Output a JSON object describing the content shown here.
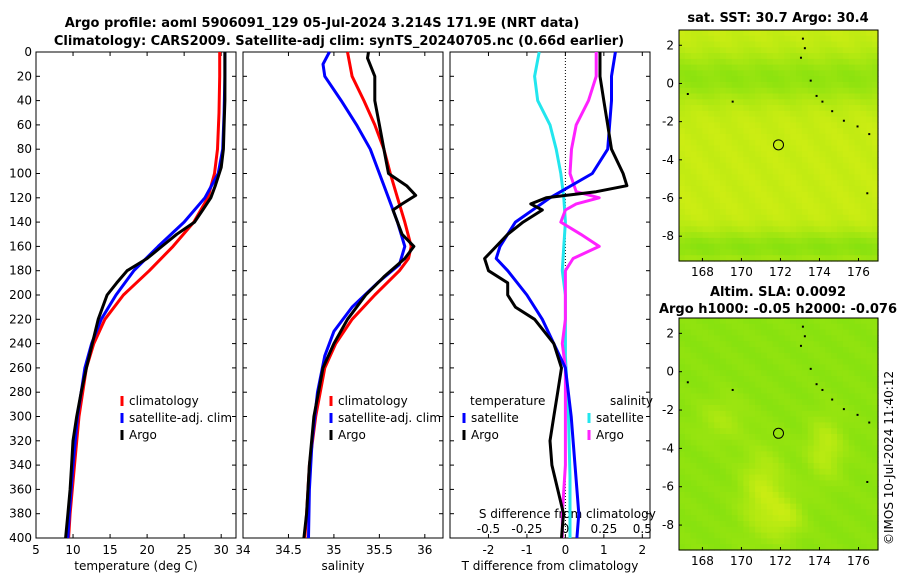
{
  "header": {
    "title_line1": "Argo profile: aoml 5906091_129 05-Jul-2024 3.214S 171.9E (NRT data)",
    "title_line2": "Climatology: CARS2009. Satellite-adj clim: synTS_20240705.nc (0.66d earlier)"
  },
  "watermark": "©IMOS 10-Jul-2024 11:40:12",
  "colors": {
    "climatology": "#ff0000",
    "satellite": "#0000ff",
    "argo": "#000000",
    "sal_satellite": "#22e6ee",
    "sal_argo": "#ff22ff",
    "map_bg": "#7ee00e",
    "map_warm": "#dff014"
  },
  "chart_data": [
    {
      "type": "line",
      "name": "temperature-profile",
      "xlabel": "temperature (deg C)",
      "xlim": [
        5,
        32
      ],
      "xticks": [
        5,
        10,
        15,
        20,
        25,
        30
      ],
      "xticklabels": [
        "5",
        "10",
        "15",
        "20",
        "25",
        "30"
      ],
      "ylim": [
        0,
        400
      ],
      "yticks": [
        0,
        20,
        40,
        60,
        80,
        100,
        120,
        140,
        160,
        180,
        200,
        220,
        240,
        260,
        280,
        300,
        320,
        340,
        360,
        380,
        400
      ],
      "legend": [
        "climatology",
        "satellite-adj. clim",
        "Argo"
      ],
      "series": [
        {
          "name": "climatology",
          "color": "#ff0000",
          "depth": [
            0,
            20,
            50,
            80,
            100,
            120,
            140,
            160,
            180,
            200,
            220,
            240,
            260,
            300,
            340,
            380,
            400
          ],
          "values": [
            29.8,
            29.8,
            29.7,
            29.5,
            29.1,
            28.2,
            26.3,
            23.5,
            20.3,
            16.8,
            14.3,
            12.8,
            11.8,
            10.8,
            10.2,
            9.6,
            9.4
          ]
        },
        {
          "name": "satellite-adj. clim",
          "color": "#0000ff",
          "depth": [
            0,
            20,
            50,
            80,
            100,
            120,
            140,
            160,
            180,
            200,
            220,
            240,
            260,
            300,
            340,
            380,
            400
          ],
          "values": [
            30.5,
            30.5,
            30.4,
            30.2,
            29.6,
            27.8,
            25.0,
            21.5,
            18.2,
            15.8,
            13.8,
            12.5,
            11.6,
            10.6,
            10.0,
            9.5,
            9.3
          ]
        },
        {
          "name": "Argo",
          "color": "#000000",
          "depth": [
            0,
            20,
            40,
            60,
            80,
            95,
            110,
            120,
            130,
            140,
            150,
            160,
            170,
            180,
            190,
            200,
            220,
            240,
            260,
            280,
            300,
            320,
            340,
            360,
            380,
            400
          ],
          "values": [
            30.5,
            30.5,
            30.5,
            30.4,
            30.3,
            30.0,
            29.2,
            28.6,
            27.5,
            26.4,
            24.0,
            22.0,
            20.0,
            17.3,
            15.9,
            14.6,
            13.4,
            12.6,
            11.8,
            11.1,
            10.5,
            10.0,
            9.8,
            9.6,
            9.3,
            9.0
          ]
        }
      ]
    },
    {
      "type": "line",
      "name": "salinity-profile",
      "xlabel": "salinity",
      "xlim": [
        34,
        36.2
      ],
      "xticks": [
        34,
        34.5,
        35,
        35.5,
        36
      ],
      "xticklabels": [
        "34",
        "34.5",
        "35",
        "35.5",
        "36"
      ],
      "ylim": [
        0,
        400
      ],
      "legend": [
        "climatology",
        "satellite-adj. clim",
        "Argo"
      ],
      "series": [
        {
          "name": "climatology",
          "color": "#ff0000",
          "depth": [
            0,
            20,
            40,
            60,
            80,
            100,
            120,
            140,
            160,
            170,
            180,
            200,
            220,
            240,
            260,
            300,
            340,
            380,
            400
          ],
          "values": [
            35.15,
            35.2,
            35.33,
            35.45,
            35.55,
            35.62,
            35.7,
            35.78,
            35.85,
            35.82,
            35.72,
            35.45,
            35.2,
            35.02,
            34.9,
            34.8,
            34.73,
            34.7,
            34.68
          ]
        },
        {
          "name": "satellite-adj. clim",
          "color": "#0000ff",
          "depth": [
            0,
            10,
            20,
            40,
            60,
            80,
            100,
            120,
            140,
            160,
            175,
            190,
            210,
            230,
            250,
            280,
            320,
            360,
            400
          ],
          "values": [
            34.95,
            34.88,
            34.9,
            35.08,
            35.25,
            35.4,
            35.5,
            35.6,
            35.7,
            35.78,
            35.72,
            35.48,
            35.2,
            35.0,
            34.9,
            34.82,
            34.76,
            34.73,
            34.72
          ]
        },
        {
          "name": "Argo",
          "color": "#000000",
          "depth": [
            0,
            5,
            20,
            40,
            60,
            80,
            100,
            110,
            118,
            125,
            130,
            140,
            150,
            160,
            170,
            185,
            200,
            220,
            240,
            260,
            280,
            300,
            340,
            380,
            400
          ],
          "values": [
            35.38,
            35.37,
            35.45,
            35.45,
            35.5,
            35.55,
            35.6,
            35.8,
            35.9,
            35.75,
            35.65,
            35.7,
            35.75,
            35.88,
            35.78,
            35.55,
            35.35,
            35.15,
            35.0,
            34.88,
            34.83,
            34.78,
            34.73,
            34.7,
            34.67
          ]
        }
      ]
    },
    {
      "type": "line",
      "name": "difference-profile",
      "xlabel": "T difference from climatology",
      "xlim": [
        -3,
        2.2
      ],
      "xticks": [
        -2,
        -1,
        0,
        1,
        2
      ],
      "xticklabels": [
        "-2",
        "-1",
        "0",
        "1",
        "2"
      ],
      "top_axis_label": "S difference from climatology",
      "top_ticklabels": [
        "-0.5",
        "-0.25",
        "0",
        "0.25",
        "0.5"
      ],
      "s_scale": 4,
      "ylim": [
        0,
        400
      ],
      "legend_title_left": "temperature",
      "legend_title_right": "salinity",
      "legend_left": [
        "satellite",
        "Argo"
      ],
      "legend_right": [
        "satellite",
        "Argo"
      ],
      "series": [
        {
          "name": "T satellite",
          "color": "#0000ff",
          "depth": [
            0,
            20,
            40,
            60,
            80,
            100,
            120,
            140,
            160,
            170,
            180,
            200,
            220,
            240,
            260,
            300,
            340,
            380,
            400
          ],
          "values": [
            1.3,
            1.2,
            1.2,
            1.15,
            1.1,
            0.7,
            -0.4,
            -1.3,
            -1.7,
            -1.8,
            -1.5,
            -1.0,
            -0.6,
            -0.3,
            0.0,
            0.15,
            0.25,
            0.35,
            0.3
          ]
        },
        {
          "name": "T Argo",
          "color": "#000000",
          "depth": [
            0,
            20,
            40,
            60,
            80,
            100,
            110,
            115,
            120,
            125,
            130,
            140,
            150,
            160,
            170,
            180,
            190,
            200,
            210,
            220,
            240,
            260,
            280,
            300,
            320,
            340,
            360,
            380,
            400
          ],
          "values": [
            0.9,
            0.9,
            1.0,
            1.1,
            1.2,
            1.5,
            1.6,
            0.8,
            -0.5,
            -0.9,
            -0.6,
            -1.1,
            -1.5,
            -1.8,
            -2.1,
            -2.0,
            -1.5,
            -1.5,
            -1.3,
            -0.8,
            -0.3,
            -0.1,
            -0.2,
            -0.3,
            -0.4,
            -0.35,
            -0.2,
            -0.05,
            -0.1
          ]
        },
        {
          "name": "S satellite",
          "color": "#22e6ee",
          "depth": [
            0,
            20,
            40,
            60,
            80,
            100,
            120,
            140,
            160,
            180,
            200,
            250,
            300,
            350,
            400
          ],
          "values": [
            -0.17,
            -0.2,
            -0.18,
            -0.1,
            -0.06,
            -0.03,
            -0.01,
            0.0,
            -0.01,
            -0.02,
            0.0,
            0.0,
            0.02,
            0.03,
            0.03
          ]
        },
        {
          "name": "S Argo",
          "color": "#ff22ff",
          "depth": [
            0,
            20,
            40,
            60,
            80,
            100,
            115,
            120,
            125,
            130,
            140,
            150,
            160,
            170,
            180,
            200,
            220,
            240,
            260,
            300,
            340,
            380,
            400
          ],
          "values": [
            0.2,
            0.2,
            0.15,
            0.07,
            0.04,
            0.03,
            0.07,
            0.22,
            0.07,
            0.0,
            -0.03,
            0.1,
            0.22,
            0.05,
            0.0,
            0.0,
            0.0,
            -0.02,
            0.0,
            0.0,
            0.0,
            -0.02,
            -0.02
          ]
        }
      ]
    },
    {
      "type": "heatmap",
      "name": "sst-map",
      "title": "sat. SST: 30.7 Argo: 30.4",
      "xlim": [
        166.8,
        177
      ],
      "ylim": [
        -9.3,
        2.8
      ],
      "xticks": [
        168,
        170,
        172,
        174,
        176
      ],
      "xticklabels": [
        "168",
        "170",
        "172",
        "174",
        "176"
      ],
      "yticks": [
        2,
        0,
        -2,
        -4,
        -6,
        -8
      ],
      "yticklabels": [
        "2",
        "0",
        "-2",
        "-4",
        "-6",
        "-8"
      ],
      "marker": {
        "lon": 171.9,
        "lat": -3.214
      }
    },
    {
      "type": "heatmap",
      "name": "sla-map",
      "title1": "Altim. SLA: 0.0092",
      "title2": "Argo h1000: -0.05 h2000: -0.076",
      "xlim": [
        166.8,
        177
      ],
      "ylim": [
        -9.3,
        2.8
      ],
      "xticks": [
        168,
        170,
        172,
        174,
        176
      ],
      "xticklabels": [
        "168",
        "170",
        "172",
        "174",
        "176"
      ],
      "yticks": [
        2,
        0,
        -2,
        -4,
        -6,
        -8
      ],
      "yticklabels": [
        "2",
        "0",
        "-2",
        "-4",
        "-6",
        "-8"
      ],
      "marker": {
        "lon": 171.9,
        "lat": -3.214
      }
    }
  ]
}
